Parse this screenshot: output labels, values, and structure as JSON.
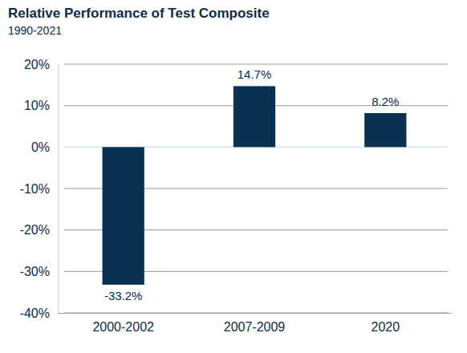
{
  "chart_data": {
    "type": "bar",
    "title": "Relative Performance of Test Composite",
    "subtitle": "1990-2021",
    "categories": [
      "2000-2002",
      "2007-2009",
      "2020"
    ],
    "values": [
      -33.2,
      14.7,
      8.2
    ],
    "value_labels": [
      "-33.2%",
      "14.7%",
      "8.2%"
    ],
    "data_labels": true,
    "color": "#0a3150",
    "ylim": [
      -40,
      20
    ],
    "yticks": [
      {
        "value": -40,
        "label": "-40%"
      },
      {
        "value": -30,
        "label": "-30%"
      },
      {
        "value": -20,
        "label": "-20%"
      },
      {
        "value": -10,
        "label": "-10%"
      },
      {
        "value": 0,
        "label": "0%"
      },
      {
        "value": 10,
        "label": "10%"
      },
      {
        "value": 20,
        "label": "20%"
      }
    ],
    "grid": true
  }
}
